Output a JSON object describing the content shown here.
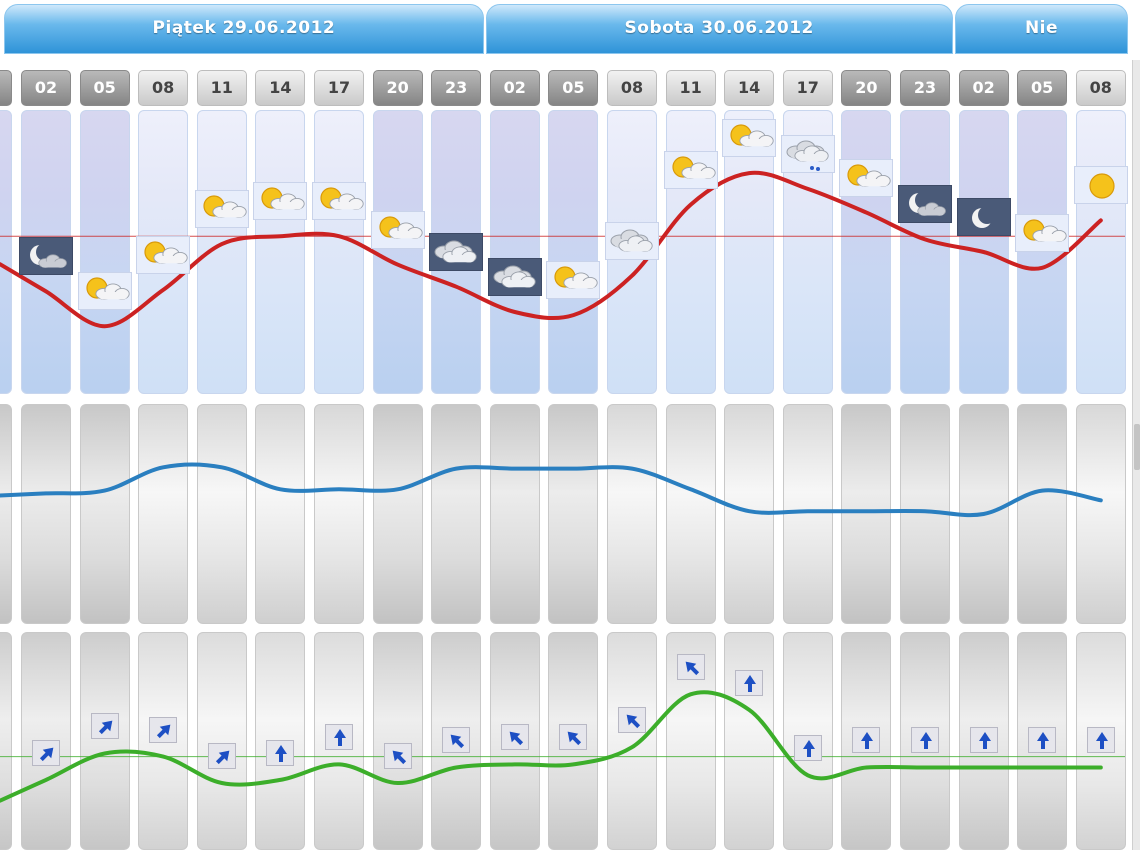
{
  "days": [
    {
      "label": "Piątek 29.06.2012",
      "start": 0,
      "span": 8
    },
    {
      "label": "Sobota 30.06.2012",
      "start": 8,
      "span": 8
    },
    {
      "label": "Nie",
      "start": 16,
      "span": 3
    }
  ],
  "hours": [
    "02",
    "05",
    "08",
    "11",
    "14",
    "17",
    "20",
    "23",
    "02",
    "05",
    "08",
    "11",
    "14",
    "17",
    "20",
    "23",
    "02",
    "05",
    "08"
  ],
  "night": [
    true,
    true,
    false,
    false,
    false,
    false,
    true,
    true,
    true,
    true,
    false,
    false,
    false,
    false,
    true,
    true,
    true,
    true,
    false
  ],
  "chart_data": [
    {
      "type": "line",
      "x": [
        "02",
        "05",
        "08",
        "11",
        "14",
        "17",
        "20",
        "23",
        "02",
        "05",
        "08",
        "11",
        "14",
        "17",
        "20",
        "23",
        "02",
        "05",
        "08"
      ],
      "values": [
        22.5,
        20.3,
        22.6,
        25.5,
        26.0,
        26.0,
        24.2,
        22.8,
        21.2,
        21.0,
        23.5,
        28.0,
        30.0,
        29.0,
        27.5,
        25.8,
        25.0,
        24.0,
        27.0
      ],
      "ylim": [
        16,
        34
      ],
      "reference": 26,
      "color": "#cc2222",
      "icons": [
        "moon-cloud",
        "sun-cloud",
        "sun-cloud",
        "sun-cloud",
        "sun-cloud",
        "sun-cloud",
        "sun-cloud",
        "cloudy",
        "cloudy",
        "sun-cloud",
        "cloudy",
        "sun-cloud",
        "sun-cloud",
        "rain-cloud",
        "sun-cloud",
        "moon-cloud",
        "moon",
        "sun-cloud",
        "sun"
      ]
    },
    {
      "type": "line",
      "x": [
        "02",
        "05",
        "08",
        "11",
        "14",
        "17",
        "20",
        "23",
        "02",
        "05",
        "08",
        "11",
        "14",
        "17",
        "20",
        "23",
        "02",
        "05",
        "08"
      ],
      "values": [
        1009.5,
        1009.7,
        1011.4,
        1011.4,
        1009.8,
        1009.8,
        1009.8,
        1011.3,
        1011.3,
        1011.3,
        1011.3,
        1009.8,
        1008.2,
        1008.2,
        1008.2,
        1008.2,
        1008.0,
        1009.7,
        1009.0
      ],
      "ylim": [
        1000,
        1016
      ],
      "color": "#2a7fc0"
    },
    {
      "type": "line",
      "x": [
        "02",
        "05",
        "08",
        "11",
        "14",
        "17",
        "20",
        "23",
        "02",
        "05",
        "08",
        "11",
        "14",
        "17",
        "20",
        "23",
        "02",
        "05",
        "08"
      ],
      "values": [
        1.5,
        3.2,
        3.0,
        1.3,
        1.5,
        2.5,
        1.3,
        2.3,
        2.5,
        2.5,
        3.6,
        7.0,
        6.0,
        1.8,
        2.3,
        2.3,
        2.3,
        2.3,
        2.3
      ],
      "ylim": [
        -3,
        11
      ],
      "reference": 3,
      "color": "#3cae2a",
      "wind_directions": [
        "NE",
        "NE",
        "NE",
        "NE",
        "N",
        "N",
        "NW",
        "NW",
        "NW",
        "NW",
        "NW",
        "NW",
        "N",
        "N",
        "N",
        "N",
        "N",
        "N",
        "N"
      ]
    }
  ]
}
